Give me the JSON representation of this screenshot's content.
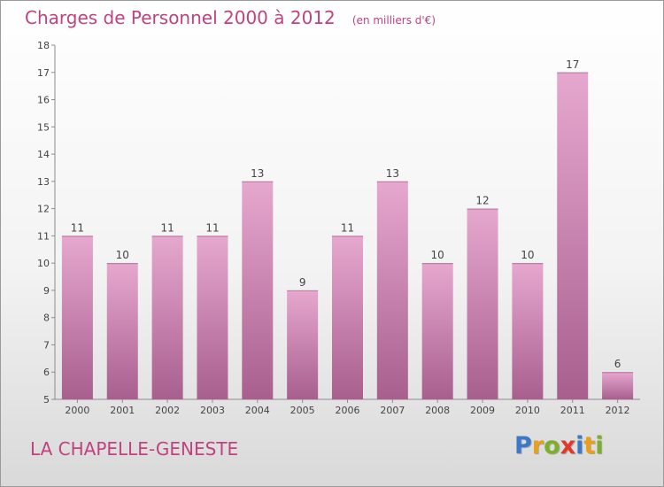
{
  "header": {
    "title": "Charges de Personnel 2000 à 2012",
    "subtitle": "(en milliers d'€)"
  },
  "footer": {
    "commune": "LA CHAPELLE-GENESTE",
    "brand": "Proxiti"
  },
  "colors": {
    "accent": "#c2417f",
    "bar_top": "#e6a8cf",
    "bar_bottom": "#a85f8e",
    "logo_letters": [
      "#3a78c9",
      "#e8a01a",
      "#7db02a",
      "#e0392b",
      "#3a78c9",
      "#e8a01a",
      "#7db02a"
    ]
  },
  "chart_data": {
    "type": "bar",
    "title": "Charges de Personnel 2000 à 2012",
    "subtitle": "(en milliers d'€)",
    "categories": [
      "2000",
      "2001",
      "2002",
      "2003",
      "2004",
      "2005",
      "2006",
      "2007",
      "2008",
      "2009",
      "2010",
      "2011",
      "2012"
    ],
    "values": [
      11,
      10,
      11,
      11,
      13,
      9,
      11,
      13,
      10,
      12,
      10,
      17,
      6
    ],
    "ylim": [
      5,
      18
    ],
    "yticks": [
      5,
      6,
      7,
      8,
      9,
      10,
      11,
      12,
      13,
      14,
      15,
      16,
      17,
      18
    ],
    "grid": false,
    "xlabel": "",
    "ylabel": ""
  }
}
